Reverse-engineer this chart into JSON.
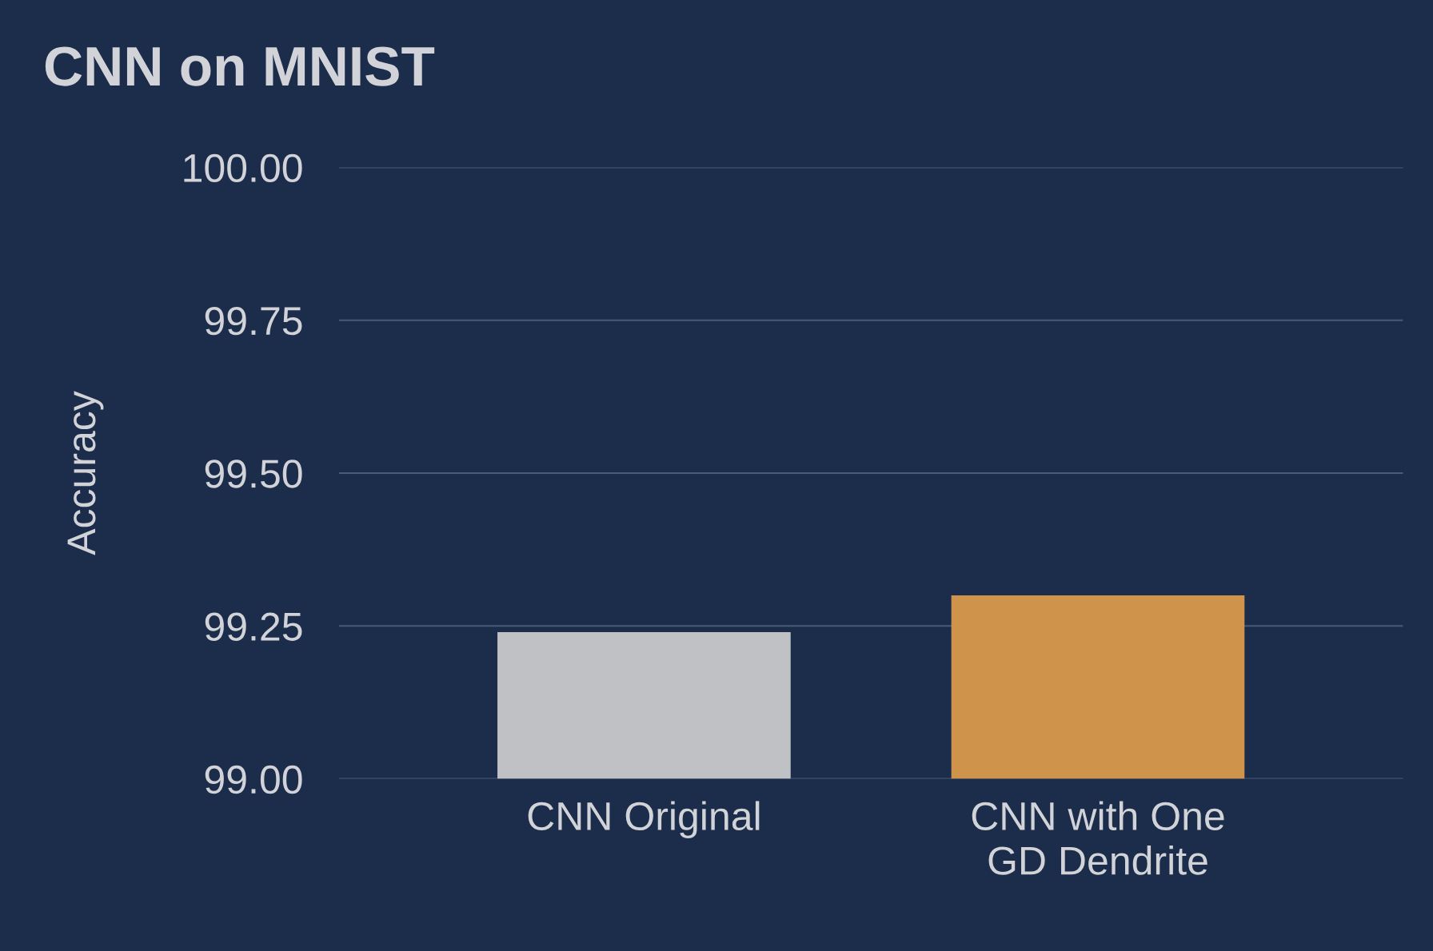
{
  "chart_data": {
    "type": "bar",
    "title": "CNN on MNIST",
    "ylabel": "Accuracy",
    "categories": [
      "CNN Original",
      "CNN with One\nGD Dendrite"
    ],
    "values": [
      99.24,
      99.3
    ],
    "colors": [
      "#c0c1c5",
      "#d0934c"
    ],
    "ylim": [
      99.0,
      100.0
    ],
    "yticks": [
      {
        "value": 99.0,
        "label": "99.00"
      },
      {
        "value": 99.25,
        "label": "99.25"
      },
      {
        "value": 99.5,
        "label": "99.50"
      },
      {
        "value": 99.75,
        "label": "99.75"
      },
      {
        "value": 100.0,
        "label": "100.00"
      }
    ],
    "grid": "y",
    "legend": false
  }
}
